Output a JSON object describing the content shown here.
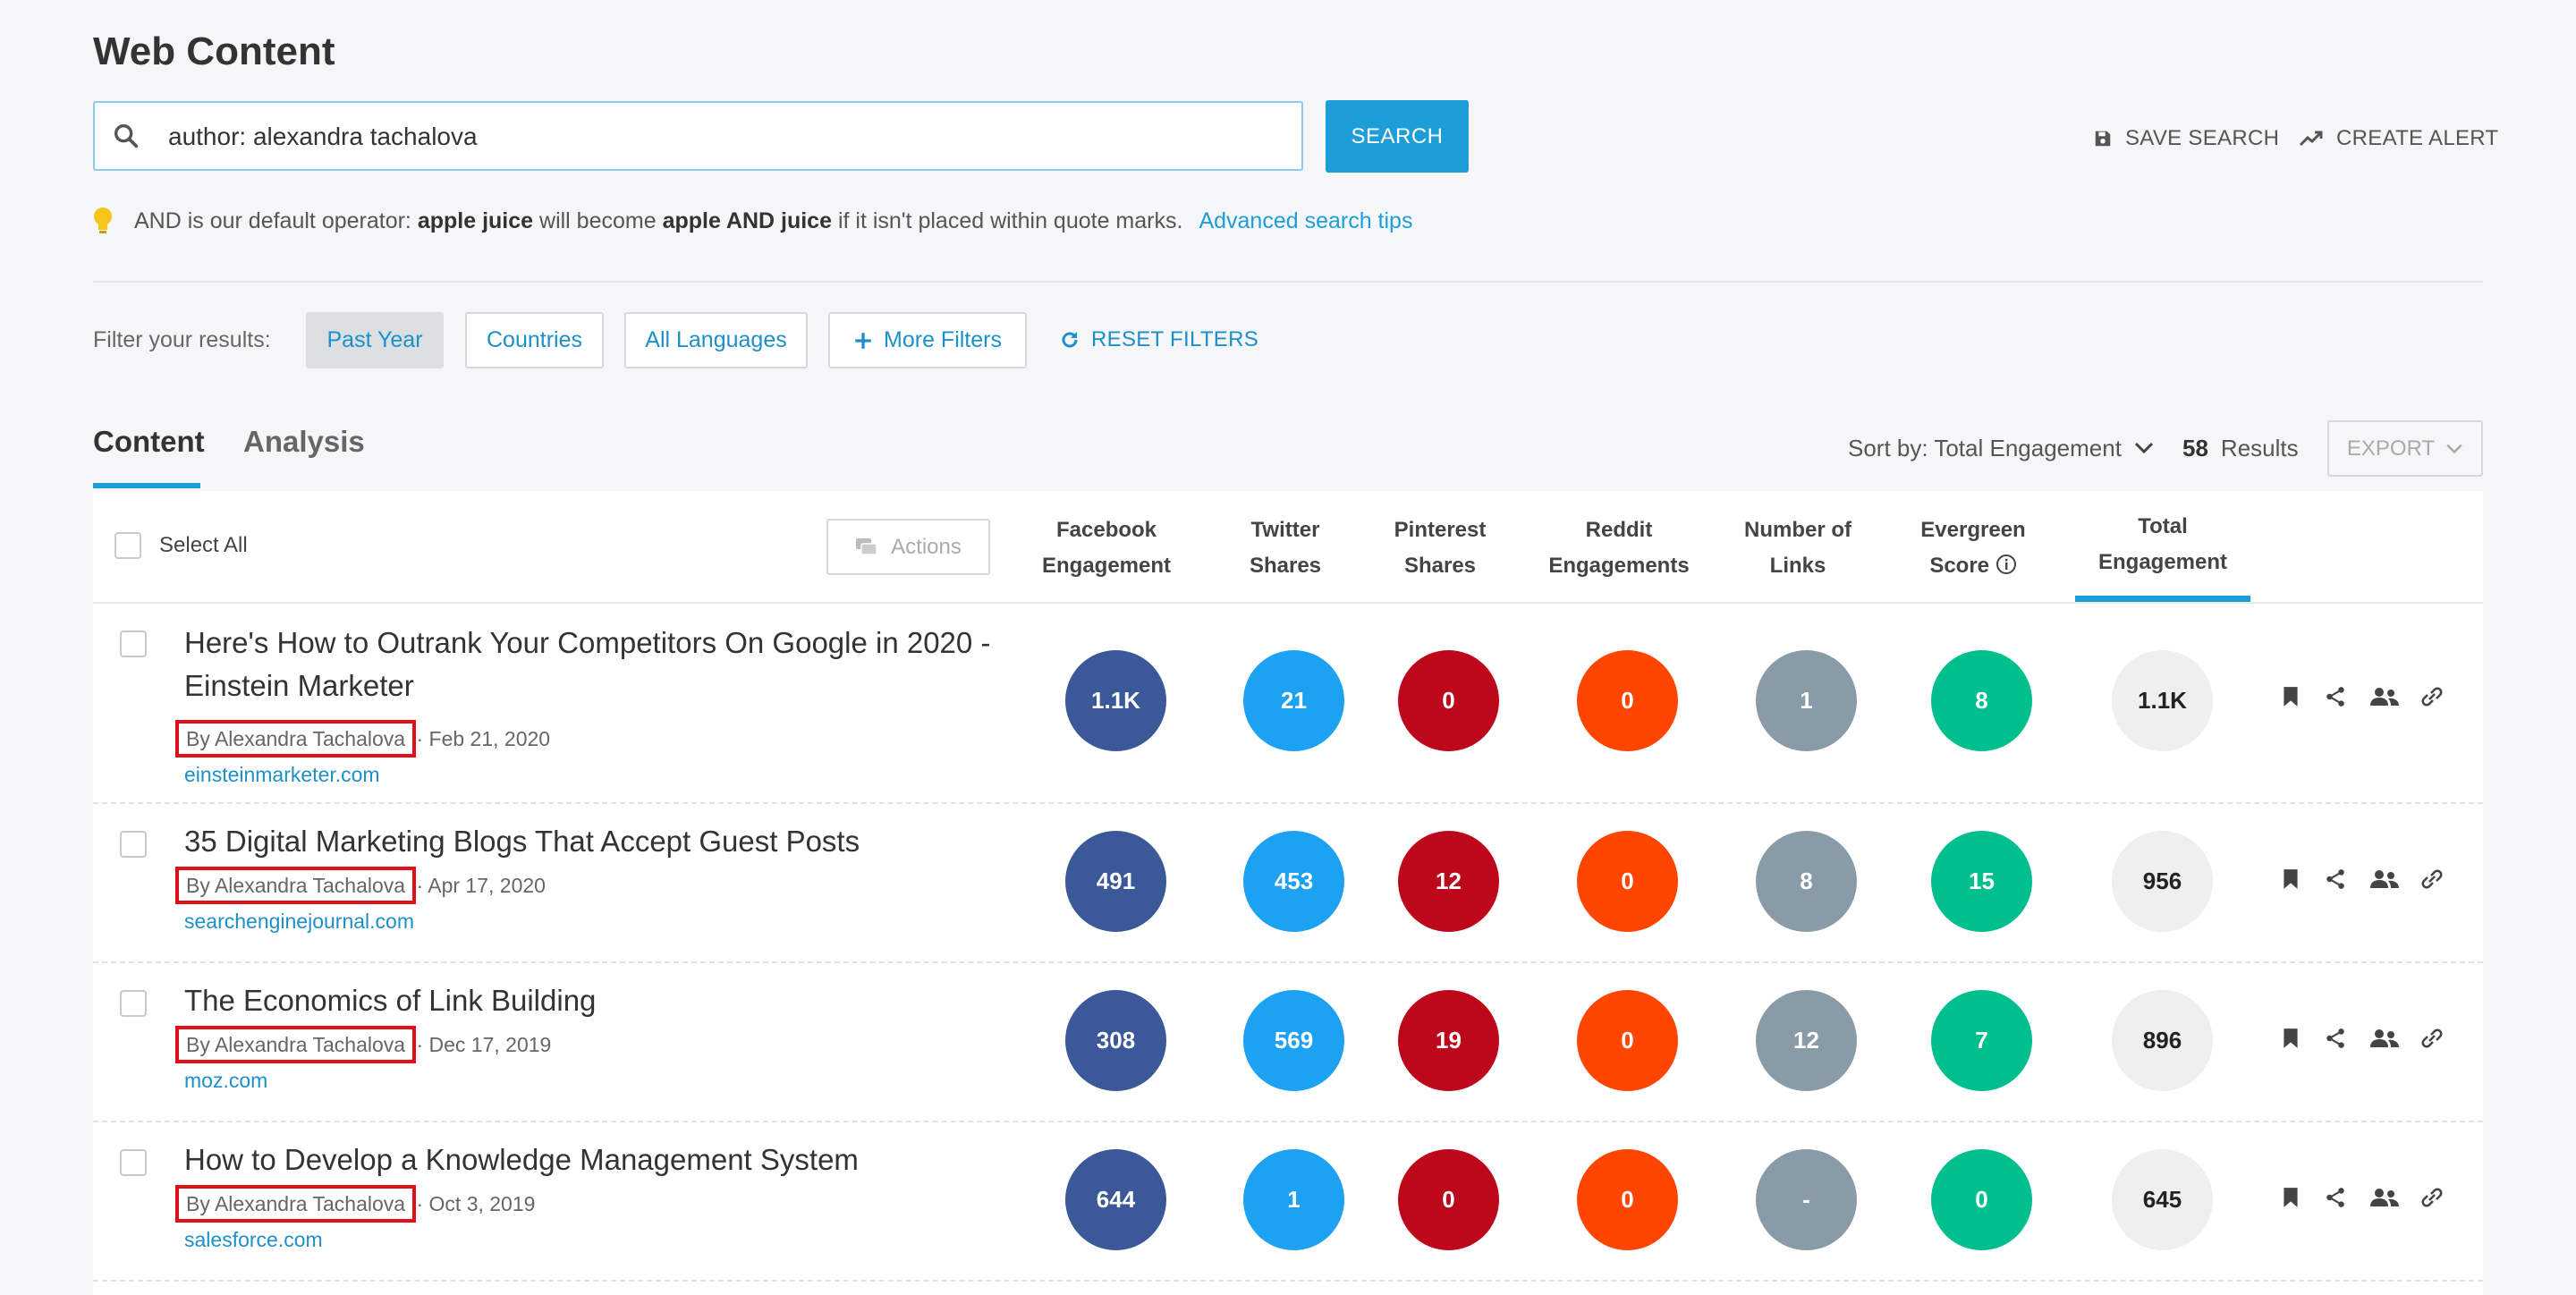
{
  "page": {
    "title": "Web Content"
  },
  "search": {
    "value": "author: alexandra tachalova",
    "button_label": "SEARCH",
    "save_label": "SAVE SEARCH",
    "alert_label": "CREATE ALERT"
  },
  "tip": {
    "pre": "AND is our default operator:",
    "term1": "apple juice",
    "mid": "will become",
    "term2": "apple AND juice",
    "post": "if it isn't placed within quote marks.",
    "link": "Advanced search tips"
  },
  "filters": {
    "label": "Filter your results:",
    "past_year": "Past Year",
    "countries": "Countries",
    "languages": "All Languages",
    "more": "More Filters",
    "reset": "RESET FILTERS"
  },
  "tabs": {
    "content": "Content",
    "analysis": "Analysis"
  },
  "sort": {
    "label": "Sort by: Total Engagement",
    "count": "58",
    "results_label": "Results",
    "export": "EXPORT"
  },
  "table": {
    "select_all": "Select All",
    "actions": "Actions",
    "columns": [
      {
        "l1": "Facebook",
        "l2": "Engagement"
      },
      {
        "l1": "Twitter",
        "l2": "Shares"
      },
      {
        "l1": "Pinterest",
        "l2": "Shares"
      },
      {
        "l1": "Reddit",
        "l2": "Engagements"
      },
      {
        "l1": "Number of",
        "l2": "Links"
      },
      {
        "l1": "Evergreen",
        "l2": "Score"
      },
      {
        "l1": "Total",
        "l2": "Engagement"
      }
    ],
    "rows": [
      {
        "title": "Here's How to Outrank Your Competitors On Google in 2020 - Einstein Marketer",
        "author": "By Alexandra Tachalova",
        "date": "· Feb 21, 2020",
        "source": "einsteinmarketer.com",
        "values": [
          "1.1K",
          "21",
          "0",
          "0",
          "1",
          "8",
          "1.1K"
        ]
      },
      {
        "title": "35 Digital Marketing Blogs That Accept Guest Posts",
        "author": "By Alexandra Tachalova",
        "date": "· Apr 17, 2020",
        "source": "searchenginejournal.com",
        "values": [
          "491",
          "453",
          "12",
          "0",
          "8",
          "15",
          "956"
        ]
      },
      {
        "title": "The Economics of Link Building",
        "author": "By Alexandra Tachalova",
        "date": "· Dec 17, 2019",
        "source": "moz.com",
        "values": [
          "308",
          "569",
          "19",
          "0",
          "12",
          "7",
          "896"
        ]
      },
      {
        "title": "How to Develop a Knowledge Management System",
        "author": "By Alexandra Tachalova",
        "date": "· Oct 3, 2019",
        "source": "salesforce.com",
        "values": [
          "644",
          "1",
          "0",
          "0",
          "-",
          "0",
          "645"
        ]
      }
    ]
  },
  "colors": {
    "accent": "#1d9ed8",
    "facebook": "#3b5998",
    "twitter": "#1da1f2",
    "pinterest": "#bd081c",
    "reddit": "#ff4500",
    "links": "#8a9ba8",
    "evergreen": "#00bf8f",
    "highlight_box": "#e0101a"
  }
}
